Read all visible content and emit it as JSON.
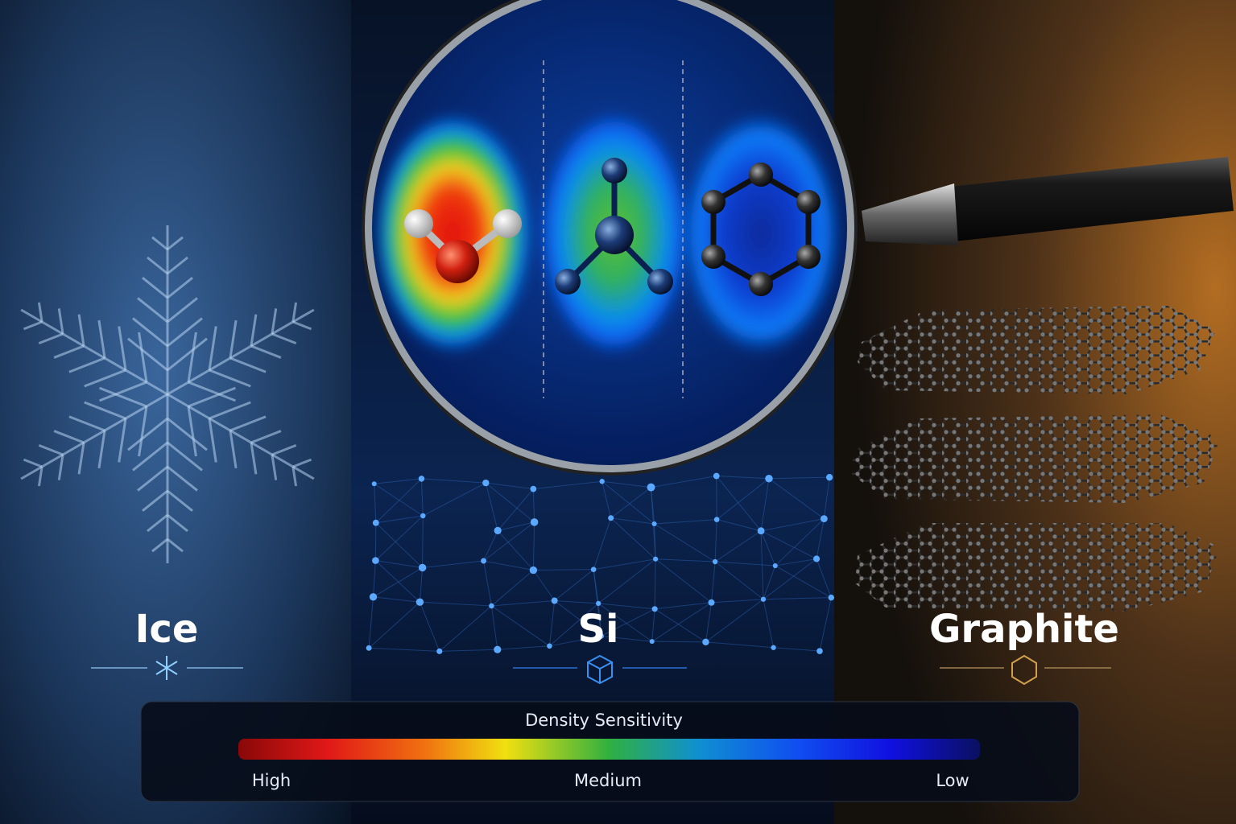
{
  "panels": [
    {
      "label": "Ice"
    },
    {
      "label": "Si"
    },
    {
      "label": "Graphite"
    }
  ],
  "legend": {
    "title": "Density Sensitivity",
    "labels": [
      "High",
      "Medium",
      "Low"
    ]
  }
}
